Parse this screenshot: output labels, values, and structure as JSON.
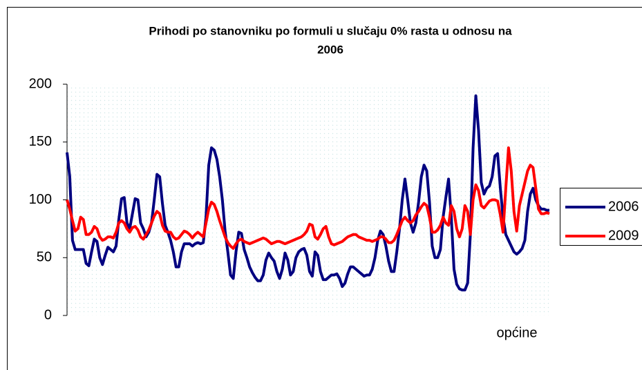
{
  "chart_data": {
    "type": "line",
    "title": [
      "Prihodi po stanovniku po formuli u slučaju  0% rasta u odnosu na",
      "2006"
    ],
    "xlabel": "općine",
    "categories": [
      null,
      null,
      null,
      null,
      null,
      null,
      null,
      null,
      null,
      null,
      null,
      null,
      null,
      null,
      null,
      null,
      null,
      null,
      null,
      null,
      null,
      null,
      null,
      null,
      null,
      null,
      null,
      null,
      null,
      null,
      null,
      null,
      null,
      null,
      null,
      null,
      null,
      null,
      null,
      null,
      null,
      null,
      null,
      null,
      null,
      null,
      null,
      null,
      null,
      null,
      null,
      null,
      null,
      null,
      null,
      null,
      null,
      null,
      null,
      null,
      null,
      null,
      null,
      null,
      null,
      null,
      null,
      null,
      null,
      null,
      null,
      null,
      null,
      null,
      null,
      null,
      null,
      null,
      null,
      null,
      null,
      null,
      null,
      null,
      null,
      null,
      null,
      null,
      null,
      null,
      null,
      null,
      null,
      null,
      null,
      null,
      null,
      null,
      null,
      null,
      null,
      null,
      null,
      null,
      null,
      null,
      null,
      null,
      null,
      null,
      null,
      null,
      null,
      null,
      null,
      null,
      null,
      null,
      null,
      null,
      null,
      null,
      null,
      null,
      null,
      null,
      null,
      null,
      null,
      null,
      null,
      null,
      null,
      null,
      null,
      null,
      null,
      null,
      null,
      null,
      null,
      null,
      null,
      null,
      null,
      null,
      null,
      null,
      null,
      null,
      null,
      null,
      null,
      null,
      null,
      null,
      null,
      null,
      null,
      null,
      null,
      null,
      null,
      null,
      null,
      null,
      null,
      null,
      null,
      null,
      null,
      null,
      null,
      null,
      null,
      null,
      null,
      null
    ],
    "series": [
      {
        "name": "2006",
        "color": "#000080",
        "values": [
          141,
          120,
          65,
          57,
          57,
          57,
          57,
          45,
          43,
          55,
          66,
          64,
          50,
          44,
          52,
          59,
          57,
          55,
          60,
          83,
          101,
          102,
          80,
          75,
          88,
          101,
          100,
          80,
          75,
          68,
          72,
          80,
          100,
          122,
          120,
          97,
          78,
          72,
          65,
          55,
          42,
          42,
          55,
          62,
          62,
          62,
          60,
          62,
          63,
          62,
          63,
          85,
          130,
          145,
          143,
          135,
          120,
          100,
          73,
          55,
          35,
          32,
          55,
          72,
          71,
          57,
          50,
          42,
          37,
          33,
          30,
          30,
          35,
          48,
          54,
          50,
          47,
          38,
          32,
          40,
          54,
          48,
          35,
          38,
          50,
          55,
          57,
          58,
          52,
          38,
          34,
          55,
          52,
          38,
          31,
          31,
          33,
          35,
          35,
          36,
          32,
          25,
          28,
          36,
          42,
          42,
          40,
          38,
          36,
          34,
          35,
          35,
          40,
          50,
          65,
          73,
          70,
          60,
          47,
          38,
          38,
          55,
          75,
          100,
          118,
          100,
          80,
          72,
          80,
          98,
          120,
          130,
          125,
          98,
          60,
          50,
          50,
          57,
          85,
          102,
          118,
          85,
          40,
          27,
          23,
          22,
          22,
          28,
          70,
          145,
          190,
          160,
          115,
          105,
          110,
          112,
          120,
          138,
          140,
          110,
          85,
          70,
          65,
          60,
          55,
          53,
          55,
          58,
          65,
          90,
          105,
          110,
          100,
          95,
          92,
          92,
          91,
          91
        ]
      },
      {
        "name": "2009",
        "color": "#ff0000",
        "values": [
          100,
          92,
          82,
          73,
          75,
          85,
          83,
          70,
          70,
          72,
          77,
          75,
          68,
          65,
          66,
          68,
          68,
          67,
          72,
          80,
          82,
          80,
          75,
          72,
          76,
          77,
          74,
          68,
          66,
          70,
          74,
          80,
          86,
          90,
          88,
          78,
          73,
          72,
          72,
          68,
          66,
          67,
          70,
          73,
          72,
          70,
          67,
          70,
          72,
          70,
          68,
          80,
          92,
          98,
          96,
          90,
          82,
          75,
          68,
          63,
          60,
          58,
          62,
          65,
          66,
          64,
          63,
          62,
          63,
          64,
          65,
          66,
          67,
          66,
          64,
          62,
          63,
          64,
          64,
          63,
          62,
          63,
          64,
          65,
          66,
          67,
          68,
          70,
          73,
          79,
          78,
          68,
          66,
          70,
          75,
          77,
          68,
          62,
          61,
          62,
          63,
          64,
          66,
          68,
          69,
          70,
          70,
          68,
          67,
          66,
          65,
          65,
          64,
          65,
          66,
          68,
          68,
          66,
          63,
          63,
          65,
          70,
          76,
          82,
          85,
          82,
          80,
          82,
          87,
          90,
          94,
          97,
          95,
          85,
          72,
          72,
          74,
          78,
          85,
          80,
          78,
          95,
          90,
          75,
          68,
          75,
          95,
          90,
          70,
          100,
          113,
          108,
          95,
          93,
          96,
          99,
          100,
          100,
          99,
          87,
          72,
          110,
          145,
          125,
          90,
          73,
          95,
          105,
          115,
          125,
          130,
          128,
          110,
          92,
          88,
          88,
          89,
          88
        ]
      }
    ],
    "ylim": [
      0,
      200
    ],
    "yticks": [
      0,
      50,
      100,
      150,
      200
    ],
    "legend": "right"
  }
}
